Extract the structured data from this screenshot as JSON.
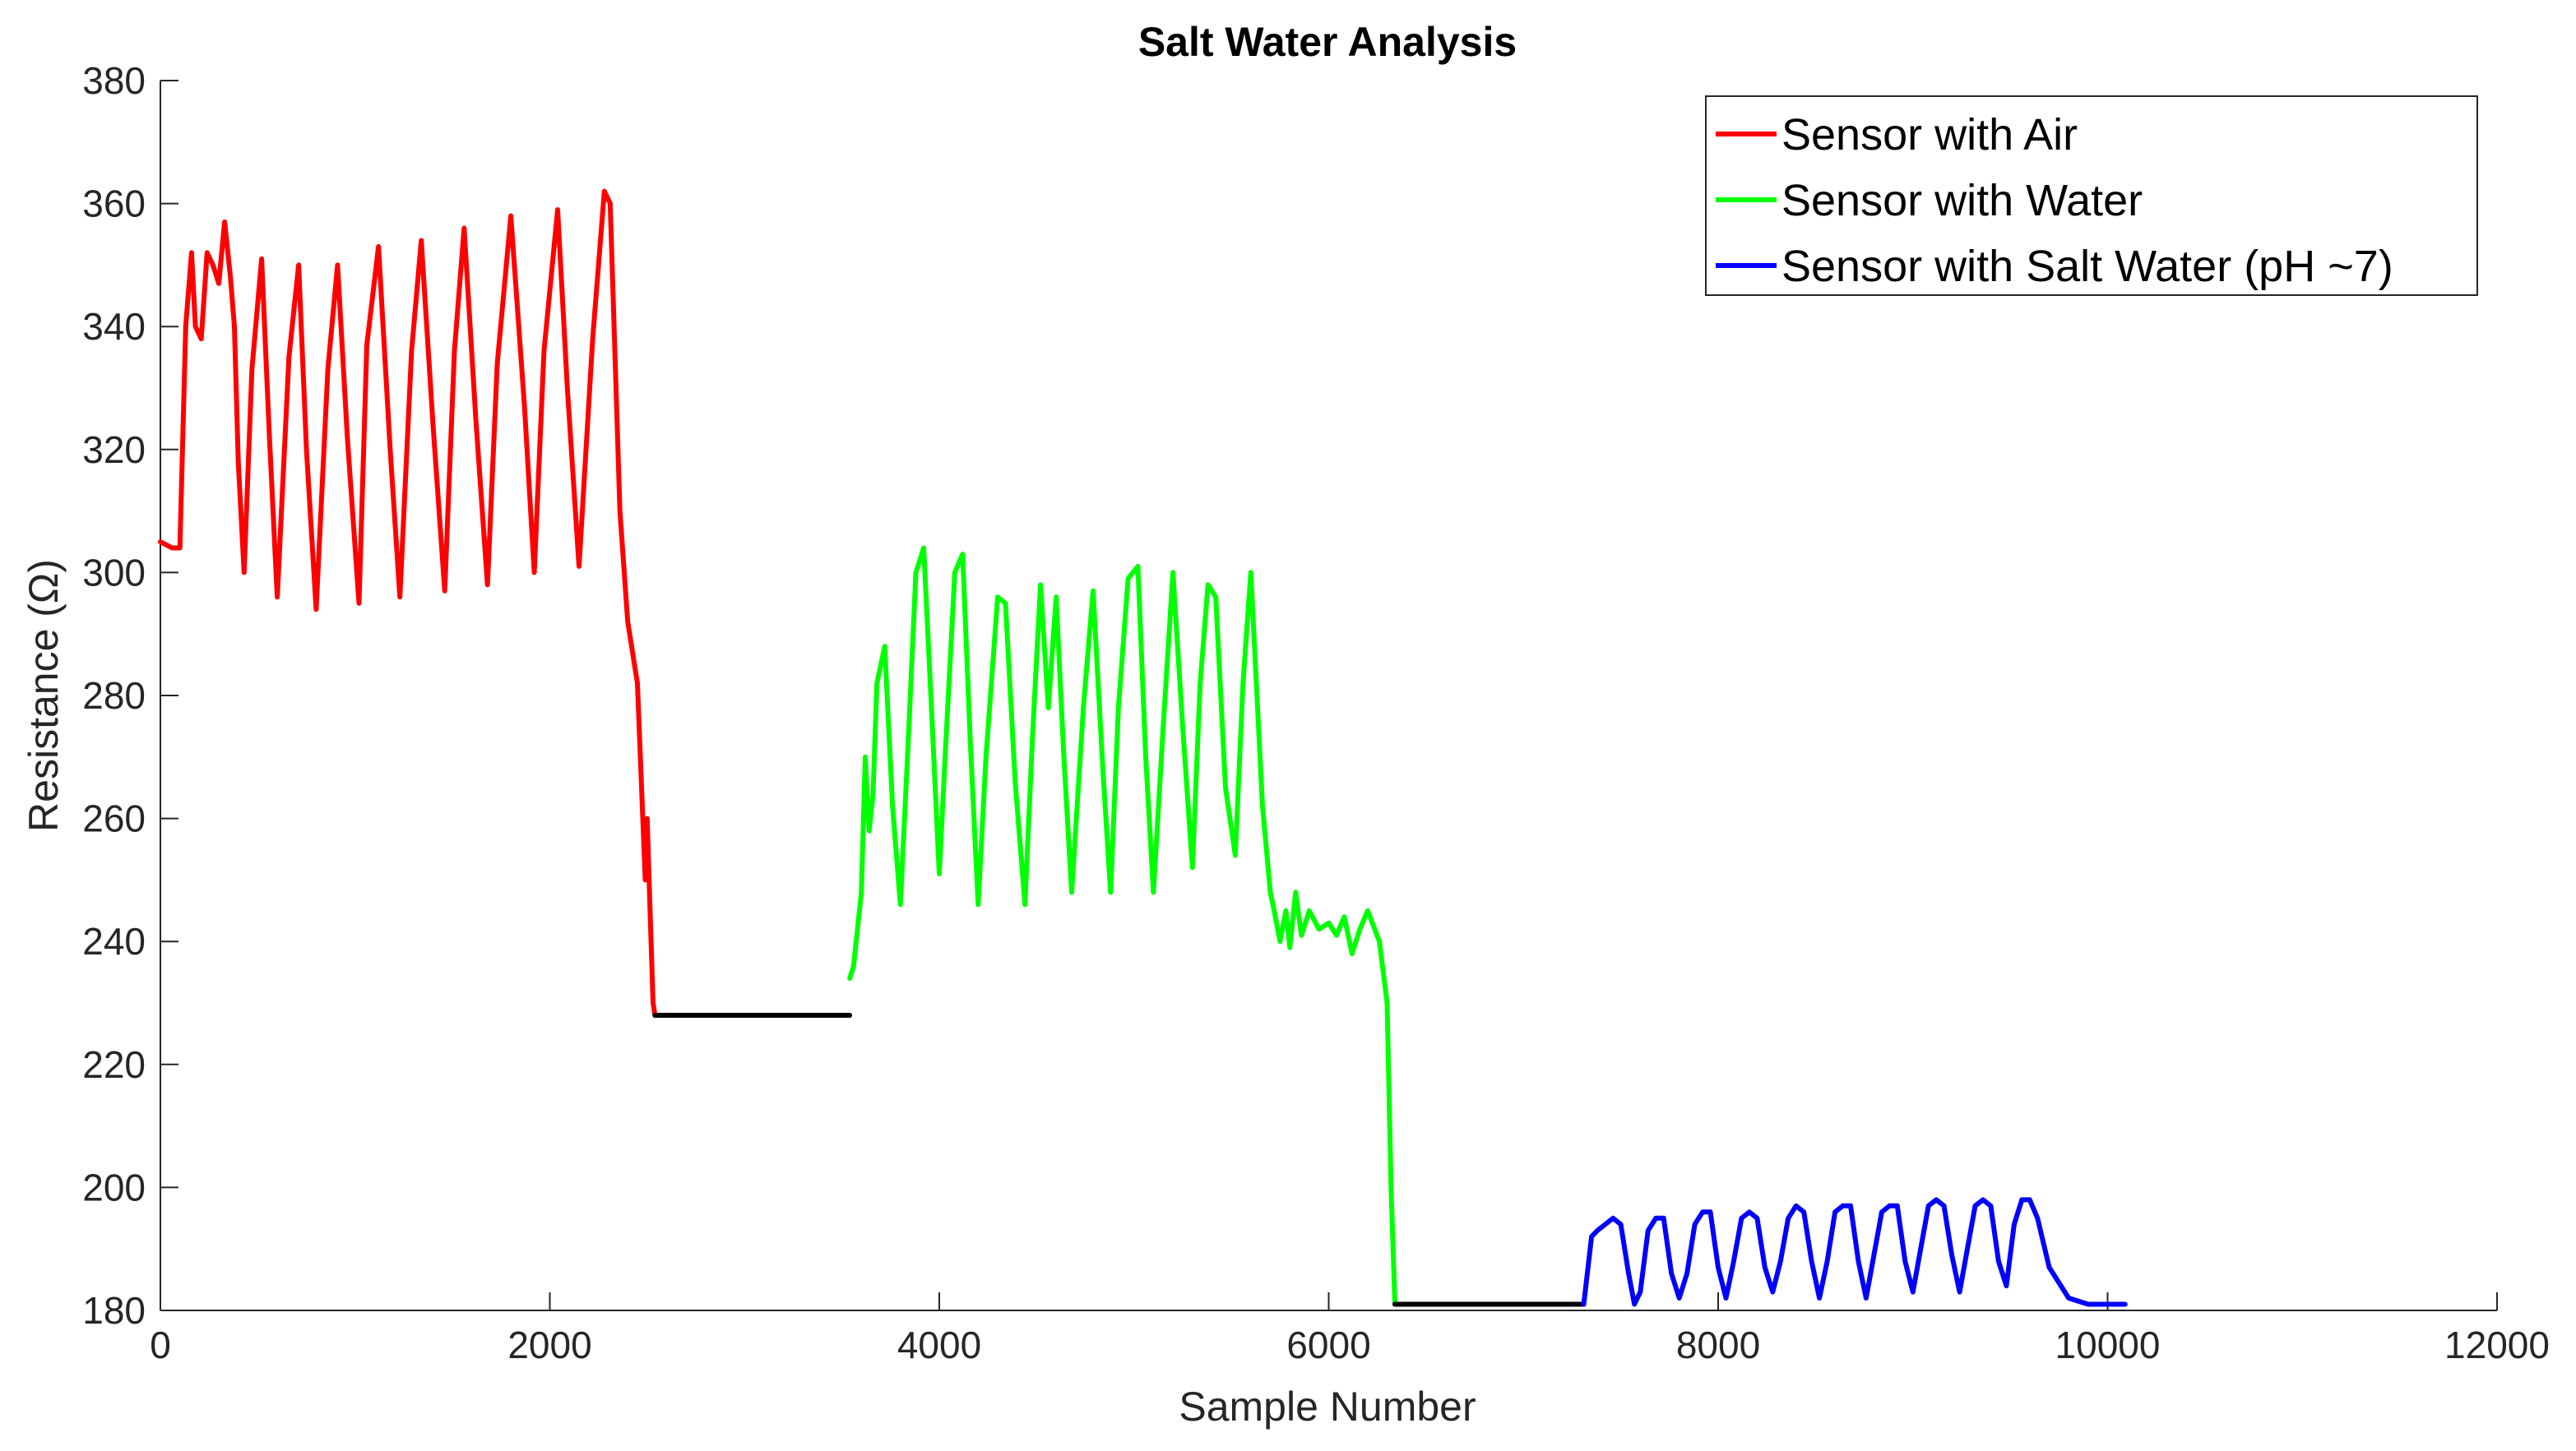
{
  "chart_data": {
    "type": "line",
    "title": "Salt Water Analysis",
    "xlabel": "Sample Number",
    "ylabel": "Resistance (Ω)",
    "xlim": [
      0,
      12000
    ],
    "ylim": [
      180,
      380
    ],
    "xticks": [
      0,
      2000,
      4000,
      6000,
      8000,
      10000,
      12000
    ],
    "yticks": [
      180,
      200,
      220,
      240,
      260,
      280,
      300,
      320,
      340,
      360,
      380
    ],
    "grid": false,
    "legend_position": "top-right",
    "series": [
      {
        "name": "Sensor with Air",
        "color": "#ff0000",
        "in_legend": true,
        "x": [
          0,
          60,
          100,
          130,
          160,
          180,
          210,
          240,
          270,
          300,
          330,
          360,
          380,
          400,
          430,
          470,
          520,
          560,
          600,
          660,
          710,
          750,
          800,
          860,
          910,
          960,
          1020,
          1060,
          1120,
          1180,
          1230,
          1290,
          1340,
          1400,
          1460,
          1510,
          1560,
          1620,
          1680,
          1730,
          1800,
          1870,
          1920,
          1970,
          2040,
          2090,
          2150,
          2220,
          2280,
          2310,
          2360,
          2400,
          2450,
          2490,
          2500,
          2510,
          2520,
          2530,
          2540
        ],
        "y": [
          305,
          304,
          304,
          340,
          352,
          340,
          338,
          352,
          350,
          347,
          357,
          348,
          340,
          318,
          300,
          333,
          351,
          322,
          296,
          335,
          350,
          320,
          294,
          333,
          350,
          322,
          295,
          337,
          353,
          320,
          296,
          336,
          354,
          324,
          297,
          336,
          356,
          325,
          298,
          334,
          358,
          327,
          300,
          336,
          359,
          330,
          301,
          338,
          362,
          360,
          310,
          292,
          282,
          250,
          260,
          250,
          240,
          230,
          228
        ]
      },
      {
        "name": "Baseline (no legend entry)",
        "color": "#000000",
        "in_legend": false,
        "x": [
          2540,
          3540
        ],
        "y": [
          228,
          228
        ]
      },
      {
        "name": "Sensor with Water",
        "color": "#00ff00",
        "in_legend": true,
        "x": [
          3540,
          3560,
          3600,
          3620,
          3640,
          3660,
          3680,
          3720,
          3760,
          3800,
          3840,
          3880,
          3920,
          3960,
          4000,
          4030,
          4080,
          4120,
          4160,
          4200,
          4240,
          4300,
          4340,
          4390,
          4440,
          4480,
          4520,
          4560,
          4600,
          4640,
          4680,
          4740,
          4790,
          4840,
          4880,
          4920,
          4970,
          5020,
          5060,
          5100,
          5150,
          5200,
          5250,
          5300,
          5340,
          5380,
          5420,
          5470,
          5520,
          5560,
          5600,
          5660,
          5700,
          5720,
          5750,
          5780,
          5800,
          5830,
          5860,
          5900,
          5950,
          6000,
          6040,
          6080,
          6120,
          6160,
          6200,
          6260,
          6300,
          6320,
          6340
        ],
        "y": [
          234,
          236,
          248,
          270,
          258,
          264,
          282,
          288,
          262,
          246,
          272,
          300,
          304,
          278,
          251,
          270,
          300,
          303,
          272,
          246,
          270,
          296,
          295,
          266,
          246,
          274,
          298,
          278,
          296,
          270,
          248,
          278,
          297,
          268,
          248,
          278,
          299,
          301,
          270,
          248,
          275,
          300,
          275,
          252,
          282,
          298,
          296,
          265,
          254,
          282,
          300,
          262,
          248,
          245,
          240,
          245,
          239,
          248,
          241,
          245,
          242,
          243,
          241,
          244,
          238,
          242,
          245,
          240,
          230,
          200,
          181
        ]
      },
      {
        "name": "Baseline (no legend entry)",
        "color": "#000000",
        "in_legend": false,
        "x": [
          6340,
          7310
        ],
        "y": [
          181,
          181
        ]
      },
      {
        "name": "Sensor with Salt Water (pH ~7)",
        "color": "#0000ff",
        "in_legend": true,
        "x": [
          7310,
          7350,
          7380,
          7420,
          7460,
          7500,
          7540,
          7570,
          7600,
          7640,
          7680,
          7720,
          7760,
          7800,
          7840,
          7880,
          7920,
          7960,
          8000,
          8040,
          8080,
          8120,
          8160,
          8200,
          8240,
          8280,
          8320,
          8360,
          8400,
          8440,
          8480,
          8520,
          8560,
          8600,
          8640,
          8680,
          8720,
          8760,
          8800,
          8840,
          8880,
          8920,
          8960,
          9000,
          9040,
          9080,
          9120,
          9160,
          9200,
          9240,
          9280,
          9320,
          9360,
          9400,
          9440,
          9480,
          9520,
          9560,
          9600,
          9640,
          9700,
          9800,
          9900,
          10000,
          10090
        ],
        "y": [
          181,
          192,
          193,
          194,
          195,
          194,
          186,
          181,
          183,
          193,
          195,
          195,
          186,
          182,
          186,
          194,
          196,
          196,
          187,
          182,
          188,
          195,
          196,
          195,
          187,
          183,
          188,
          195,
          197,
          196,
          188,
          182,
          188,
          196,
          197,
          197,
          188,
          182,
          189,
          196,
          197,
          197,
          188,
          183,
          190,
          197,
          198,
          197,
          189,
          183,
          190,
          197,
          198,
          197,
          188,
          184,
          194,
          198,
          198,
          195,
          187,
          182,
          181,
          181,
          181
        ]
      }
    ]
  }
}
